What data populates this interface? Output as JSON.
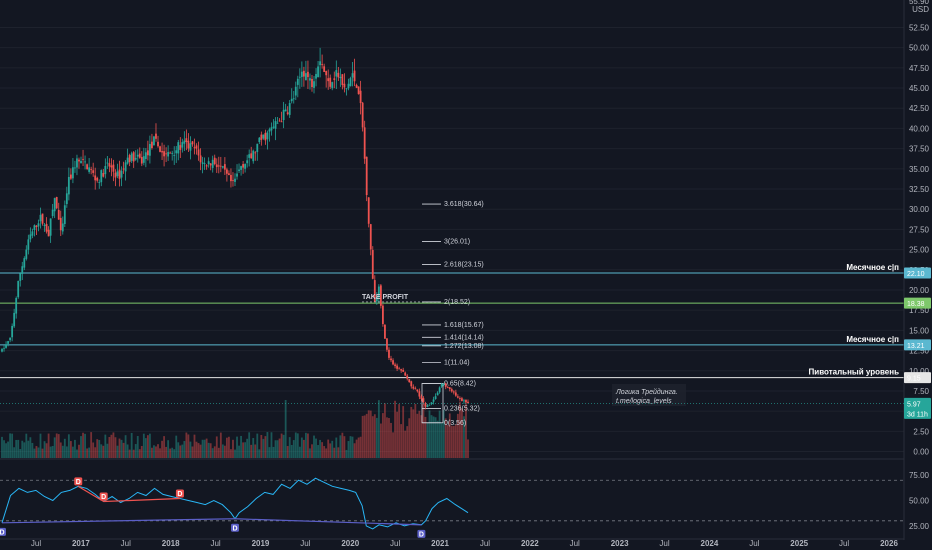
{
  "chart_data": {
    "type": "candlestick",
    "currency": "USD",
    "price_axis": {
      "range": [
        -0.8,
        55.9
      ],
      "ticks": [
        "55.90",
        "52.50",
        "50.00",
        "47.50",
        "45.00",
        "42.50",
        "40.00",
        "37.50",
        "35.00",
        "32.50",
        "30.00",
        "27.50",
        "25.00",
        "22.50",
        "20.00",
        "17.50",
        "15.00",
        "12.50",
        "10.00",
        "7.50",
        "5.00",
        "2.50",
        "0.00"
      ]
    },
    "time_axis": {
      "ticks": [
        "Jul",
        "2017",
        "Jul",
        "2018",
        "Jul",
        "2019",
        "Jul",
        "2020",
        "Jul",
        "2021",
        "Jul",
        "2022",
        "Jul",
        "2023",
        "Jul",
        "2024",
        "Jul",
        "2025",
        "Jul",
        "2026"
      ]
    },
    "price_path": [
      {
        "t": 0,
        "v": 12.5
      },
      {
        "t": 0.04,
        "v": 14.0
      },
      {
        "t": 0.08,
        "v": 21.5
      },
      {
        "t": 0.13,
        "v": 26.5
      },
      {
        "t": 0.18,
        "v": 29.0
      },
      {
        "t": 0.22,
        "v": 27.0
      },
      {
        "t": 0.25,
        "v": 31.5
      },
      {
        "t": 0.28,
        "v": 26.5
      },
      {
        "t": 0.31,
        "v": 33.0
      },
      {
        "t": 0.35,
        "v": 36.0
      },
      {
        "t": 0.4,
        "v": 35.5
      },
      {
        "t": 0.45,
        "v": 33.5
      },
      {
        "t": 0.5,
        "v": 35.5
      },
      {
        "t": 0.55,
        "v": 34.0
      },
      {
        "t": 0.6,
        "v": 36.5
      },
      {
        "t": 0.66,
        "v": 36.0
      },
      {
        "t": 0.72,
        "v": 38.5
      },
      {
        "t": 0.77,
        "v": 36.5
      },
      {
        "t": 0.82,
        "v": 37.5
      },
      {
        "t": 0.86,
        "v": 38.0
      },
      {
        "t": 0.91,
        "v": 37.5
      },
      {
        "t": 0.95,
        "v": 35.5
      },
      {
        "t": 1.0,
        "v": 36.0
      },
      {
        "t": 1.05,
        "v": 34.5
      },
      {
        "t": 1.09,
        "v": 33.0
      },
      {
        "t": 1.13,
        "v": 35.5
      },
      {
        "t": 1.18,
        "v": 36.5
      },
      {
        "t": 1.22,
        "v": 38.5
      },
      {
        "t": 1.26,
        "v": 39.5
      },
      {
        "t": 1.31,
        "v": 41.0
      },
      {
        "t": 1.35,
        "v": 42.5
      },
      {
        "t": 1.38,
        "v": 44.0
      },
      {
        "t": 1.42,
        "v": 47.5
      },
      {
        "t": 1.46,
        "v": 45.5
      },
      {
        "t": 1.5,
        "v": 49.0
      },
      {
        "t": 1.54,
        "v": 45.5
      },
      {
        "t": 1.58,
        "v": 47.0
      },
      {
        "t": 1.62,
        "v": 44.5
      },
      {
        "t": 1.65,
        "v": 46.5
      },
      {
        "t": 1.68,
        "v": 45.5
      },
      {
        "t": 1.7,
        "v": 41.0
      },
      {
        "t": 1.72,
        "v": 33.0
      },
      {
        "t": 1.74,
        "v": 25.0
      },
      {
        "t": 1.76,
        "v": 18.5
      },
      {
        "t": 1.78,
        "v": 20.5
      },
      {
        "t": 1.8,
        "v": 15.5
      },
      {
        "t": 1.82,
        "v": 12.0
      },
      {
        "t": 1.85,
        "v": 10.5
      },
      {
        "t": 1.89,
        "v": 10.0
      },
      {
        "t": 1.92,
        "v": 8.5
      },
      {
        "t": 1.96,
        "v": 7.5
      },
      {
        "t": 2.0,
        "v": 5.5
      },
      {
        "t": 2.04,
        "v": 6.5
      },
      {
        "t": 2.08,
        "v": 8.5
      },
      {
        "t": 2.12,
        "v": 7.5
      },
      {
        "t": 2.16,
        "v": 6.5
      },
      {
        "t": 2.2,
        "v": 5.97
      }
    ],
    "fibonacci": [
      {
        "label": "3.618(30.64)",
        "value": 30.64
      },
      {
        "label": "3(26.01)",
        "value": 26.01
      },
      {
        "label": "2.618(23.15)",
        "value": 23.15
      },
      {
        "label": "2(18.52)",
        "value": 18.52
      },
      {
        "label": "1.618(15.67)",
        "value": 15.67
      },
      {
        "label": "1.414(14.14)",
        "value": 14.14
      },
      {
        "label": "1.272(13.08)",
        "value": 13.08
      },
      {
        "label": "1(11.04)",
        "value": 11.04
      },
      {
        "label": "0.65(8.42)",
        "value": 8.42
      },
      {
        "label": "0.236(5.32)",
        "value": 5.32
      },
      {
        "label": "0(3.56)",
        "value": 3.56
      }
    ],
    "levels": [
      {
        "label": "Месячное с|п",
        "value": 22.1,
        "tag": "22.10",
        "color": "#5bb8d0"
      },
      {
        "label": "",
        "value": 18.38,
        "tag": "18.38",
        "color": "#7ec86b"
      },
      {
        "label": "Месячное с|п",
        "value": 13.21,
        "tag": "13.21",
        "color": "#5bb8d0"
      },
      {
        "label": "Пивотальный уровень",
        "value": 9.15,
        "tag": "9.15",
        "color": "#e6e6e6"
      }
    ],
    "current_price": {
      "tag": "5.97",
      "countdown": "3d 11h",
      "value": 5.97,
      "color": "#26a69a"
    },
    "annotations": {
      "take_profit": "TAKE PROFIT",
      "note_line1": "Логика Трейдинга.",
      "note_line2": "t.me/logica_levels"
    },
    "oscillator": {
      "ticks": [
        "75.00",
        "50.00",
        "25.00"
      ],
      "range": [
        15,
        88
      ],
      "bands": [
        70,
        30
      ],
      "divergence_marker": "D",
      "path": [
        {
          "t": 0,
          "v": 28
        },
        {
          "t": 0.04,
          "v": 55
        },
        {
          "t": 0.08,
          "v": 62
        },
        {
          "t": 0.12,
          "v": 58
        },
        {
          "t": 0.16,
          "v": 60
        },
        {
          "t": 0.2,
          "v": 54
        },
        {
          "t": 0.24,
          "v": 50
        },
        {
          "t": 0.28,
          "v": 58
        },
        {
          "t": 0.32,
          "v": 60
        },
        {
          "t": 0.36,
          "v": 64
        },
        {
          "t": 0.4,
          "v": 62
        },
        {
          "t": 0.44,
          "v": 56
        },
        {
          "t": 0.48,
          "v": 49
        },
        {
          "t": 0.52,
          "v": 54
        },
        {
          "t": 0.56,
          "v": 48
        },
        {
          "t": 0.6,
          "v": 52
        },
        {
          "t": 0.64,
          "v": 58
        },
        {
          "t": 0.68,
          "v": 55
        },
        {
          "t": 0.72,
          "v": 62
        },
        {
          "t": 0.76,
          "v": 56
        },
        {
          "t": 0.8,
          "v": 54
        },
        {
          "t": 0.84,
          "v": 52
        },
        {
          "t": 0.88,
          "v": 50
        },
        {
          "t": 0.92,
          "v": 48
        },
        {
          "t": 0.96,
          "v": 46
        },
        {
          "t": 1.0,
          "v": 50
        },
        {
          "t": 1.04,
          "v": 46
        },
        {
          "t": 1.08,
          "v": 38
        },
        {
          "t": 1.1,
          "v": 32
        },
        {
          "t": 1.12,
          "v": 38
        },
        {
          "t": 1.16,
          "v": 44
        },
        {
          "t": 1.2,
          "v": 52
        },
        {
          "t": 1.24,
          "v": 58
        },
        {
          "t": 1.28,
          "v": 56
        },
        {
          "t": 1.32,
          "v": 66
        },
        {
          "t": 1.36,
          "v": 62
        },
        {
          "t": 1.4,
          "v": 70
        },
        {
          "t": 1.44,
          "v": 66
        },
        {
          "t": 1.48,
          "v": 72
        },
        {
          "t": 1.52,
          "v": 68
        },
        {
          "t": 1.56,
          "v": 64
        },
        {
          "t": 1.6,
          "v": 62
        },
        {
          "t": 1.64,
          "v": 60
        },
        {
          "t": 1.67,
          "v": 58
        },
        {
          "t": 1.7,
          "v": 45
        },
        {
          "t": 1.72,
          "v": 25
        },
        {
          "t": 1.75,
          "v": 22
        },
        {
          "t": 1.78,
          "v": 26
        },
        {
          "t": 1.82,
          "v": 24
        },
        {
          "t": 1.86,
          "v": 28
        },
        {
          "t": 1.9,
          "v": 25
        },
        {
          "t": 1.94,
          "v": 27
        },
        {
          "t": 1.98,
          "v": 26
        },
        {
          "t": 2.0,
          "v": 30
        },
        {
          "t": 2.03,
          "v": 42
        },
        {
          "t": 2.06,
          "v": 48
        },
        {
          "t": 2.1,
          "v": 52
        },
        {
          "t": 2.14,
          "v": 46
        },
        {
          "t": 2.17,
          "v": 42
        },
        {
          "t": 2.2,
          "v": 38
        }
      ],
      "bull_markers": [
        {
          "t": 0.0,
          "v": 28
        },
        {
          "t": 1.1,
          "v": 32
        },
        {
          "t": 1.98,
          "v": 26
        }
      ],
      "bear_markers": [
        {
          "t": 0.36,
          "v": 64
        },
        {
          "t": 0.48,
          "v": 49
        },
        {
          "t": 0.84,
          "v": 52
        }
      ]
    },
    "colors": {
      "up": "#26a69a",
      "down": "#ef5350",
      "osc": "#29b6f6",
      "background": "#131722"
    }
  }
}
